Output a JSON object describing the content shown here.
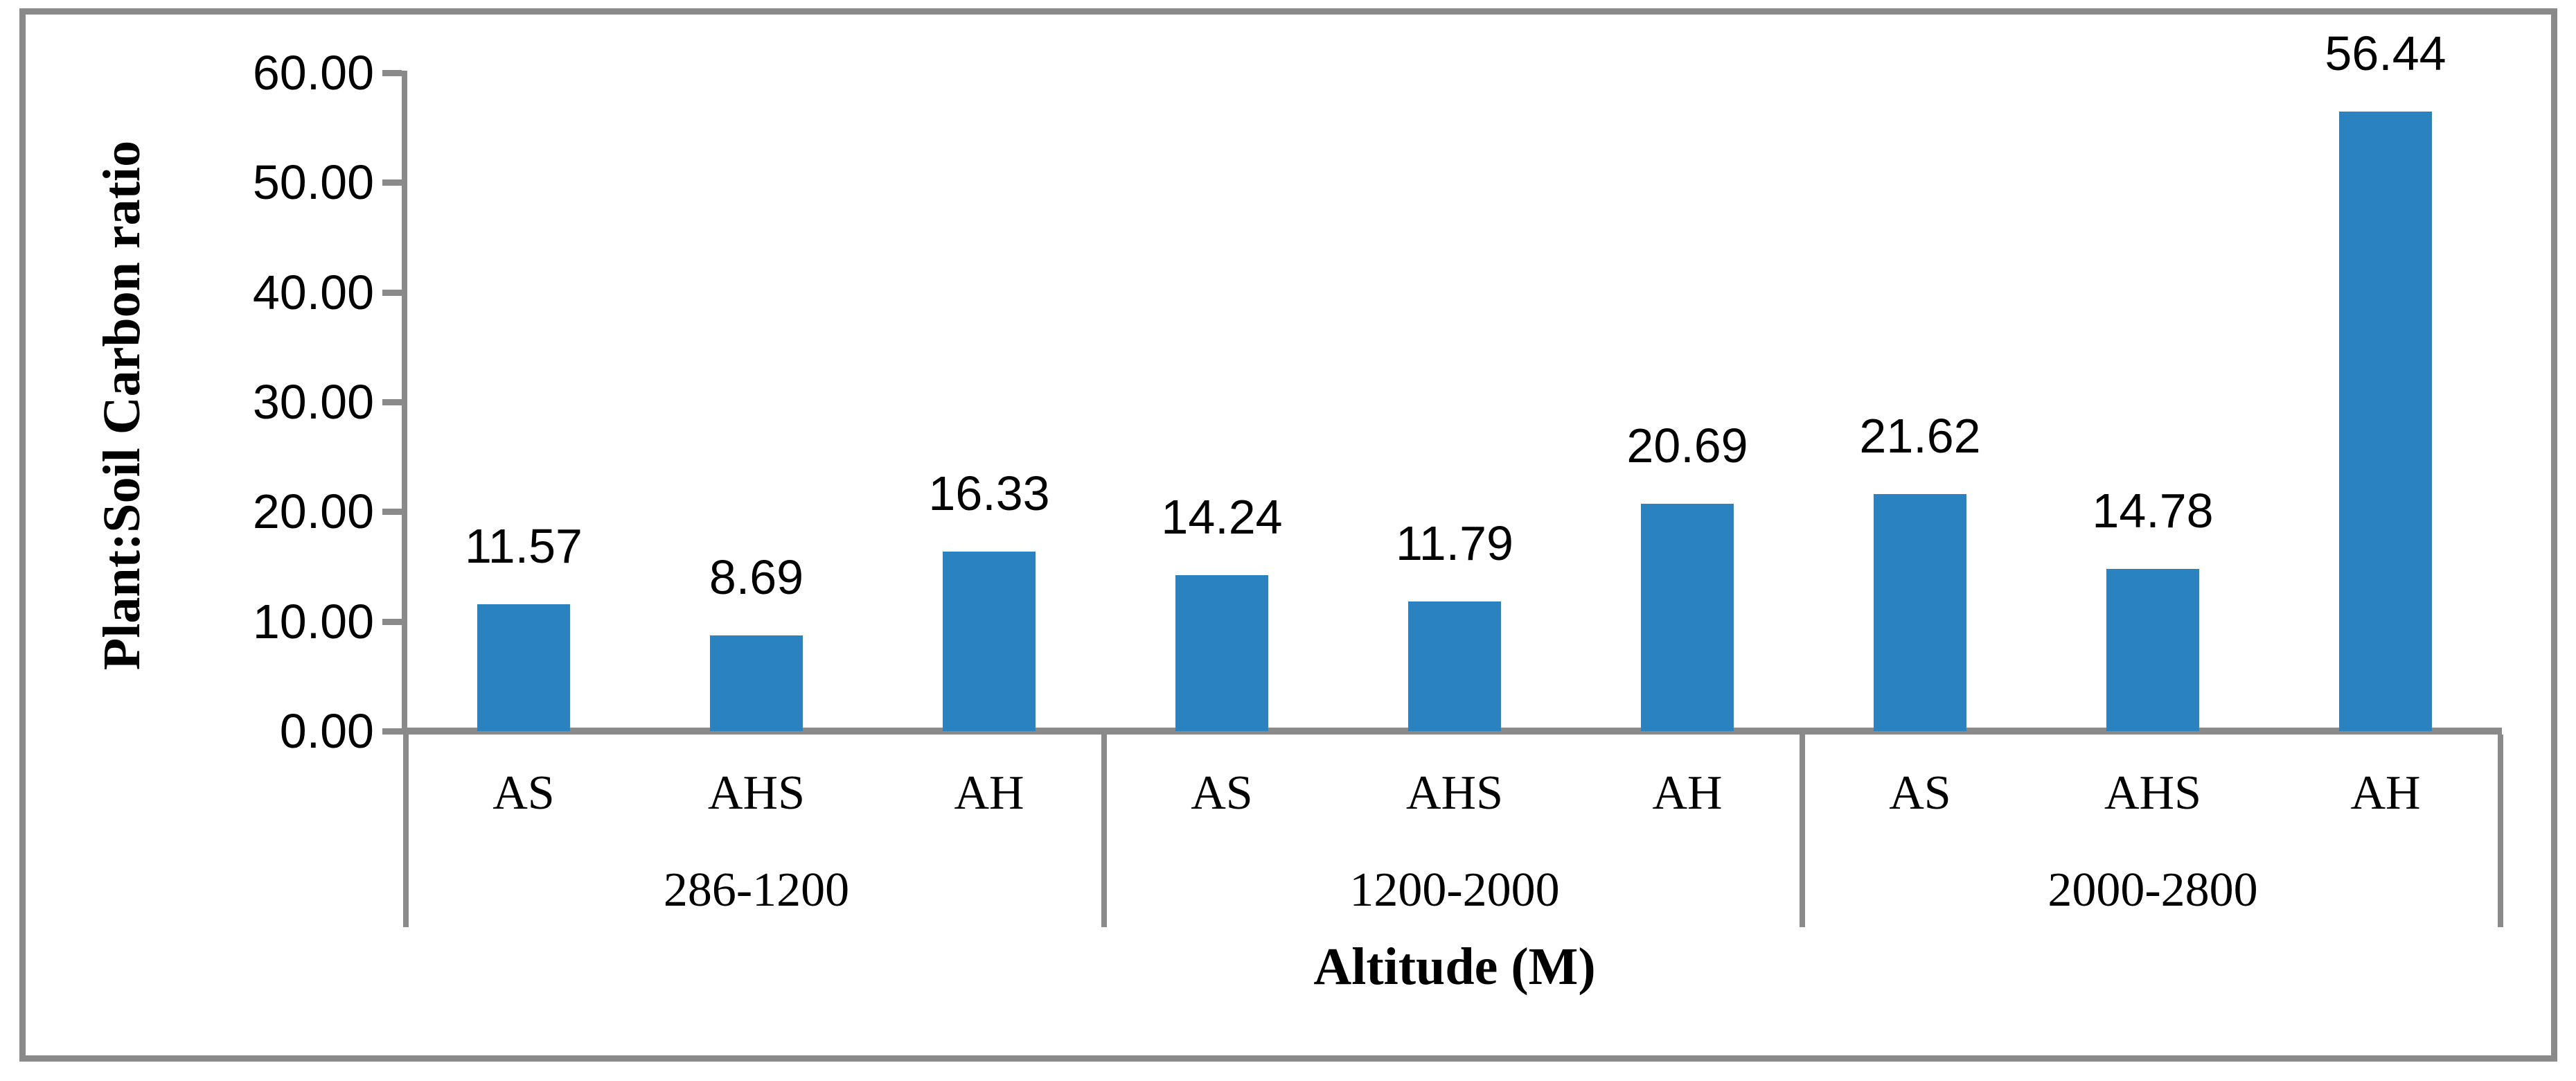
{
  "chart_data": {
    "type": "bar",
    "title": "",
    "ylabel": "Plant:Soil Carbon ratio",
    "xlabel": "Altitude (M)",
    "ylim": [
      0,
      60
    ],
    "ytick_step": 10,
    "yticks": [
      "0.00",
      "10.00",
      "20.00",
      "30.00",
      "40.00",
      "50.00",
      "60.00"
    ],
    "categories_per_group": [
      "AS",
      "AHS",
      "AH"
    ],
    "groups": [
      {
        "label": "286-1200",
        "values": [
          11.57,
          8.69,
          16.33
        ]
      },
      {
        "label": "1200-2000",
        "values": [
          14.24,
          11.79,
          20.69
        ]
      },
      {
        "label": "2000-2800",
        "values": [
          21.62,
          14.78,
          56.44
        ]
      }
    ],
    "value_labels": [
      "11.57",
      "8.69",
      "16.33",
      "14.24",
      "11.79",
      "20.69",
      "21.62",
      "14.78",
      "56.44"
    ],
    "legend_position": "none",
    "grid": "off",
    "bar_color": "#2b82c0",
    "axis_color": "#8a8a8a",
    "text_color": "#000000"
  }
}
